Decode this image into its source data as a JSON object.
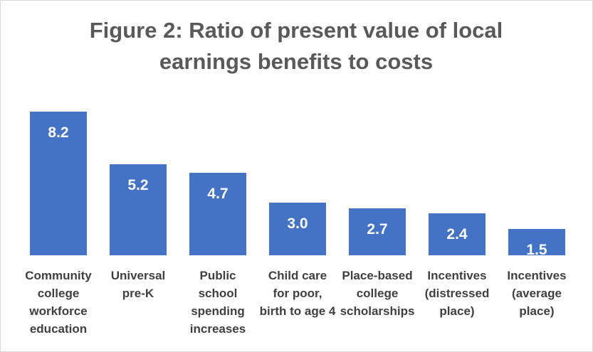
{
  "chart_data": {
    "type": "bar",
    "title": "Figure 2: Ratio of present value of  local earnings benefits to costs",
    "categories": [
      "Community college workforce education",
      "Universal pre-K",
      "Public school spending increases",
      "Child care for poor, birth to age 4",
      "Place-based college scholarships",
      "Incentives (distressed place)",
      "Incentives (average place)"
    ],
    "values": [
      8.2,
      5.2,
      4.7,
      3.0,
      2.7,
      2.4,
      1.5
    ],
    "value_labels": [
      "8.2",
      "5.2",
      "4.7",
      "3.0",
      "2.7",
      "2.4",
      "1.5"
    ],
    "color": "#4472c4"
  }
}
